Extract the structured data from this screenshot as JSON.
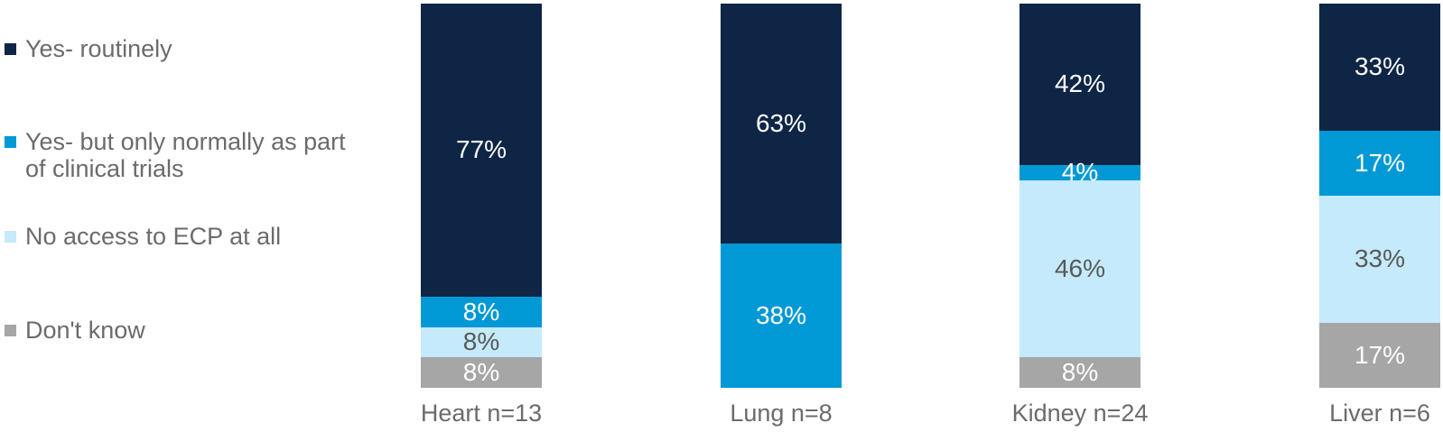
{
  "chart_data": {
    "type": "bar",
    "stacked": true,
    "orientation": "vertical",
    "unit": "%",
    "title": "",
    "legend_position": "left",
    "axes": {
      "x_visible": false,
      "y_visible": false,
      "gridlines": false,
      "value_axis_hidden": true
    },
    "categories": [
      "Heart n=13",
      "Lung n=8",
      "Kidney n=24",
      "Liver n=6"
    ],
    "series": [
      {
        "name": "Yes- routinely",
        "color": "#0E2546",
        "label_style": "on-dark",
        "values": [
          77,
          63,
          42,
          33
        ],
        "labels": [
          "77%",
          "63%",
          "42%",
          "33%"
        ]
      },
      {
        "name": "Yes- but only normally as part of clinical trials",
        "color": "#0099D6",
        "label_style": "on-dark",
        "values": [
          8,
          38,
          4,
          17
        ],
        "labels": [
          "8%",
          "38%",
          "4%",
          "17%"
        ]
      },
      {
        "name": "No access to ECP at all",
        "color": "#C5EAFB",
        "label_style": "on-light",
        "values": [
          8,
          0,
          46,
          33
        ],
        "labels": [
          "8%",
          "",
          "46%",
          "33%"
        ]
      },
      {
        "name": "Don't know",
        "color": "#A6A6A6",
        "label_style": "on-dark",
        "values": [
          8,
          0,
          8,
          17
        ],
        "labels": [
          "8%",
          "",
          "8%",
          "17%"
        ]
      }
    ],
    "value_label_colors": {
      "on_dark": "#FFFFFF",
      "on_light": "#595959"
    }
  }
}
